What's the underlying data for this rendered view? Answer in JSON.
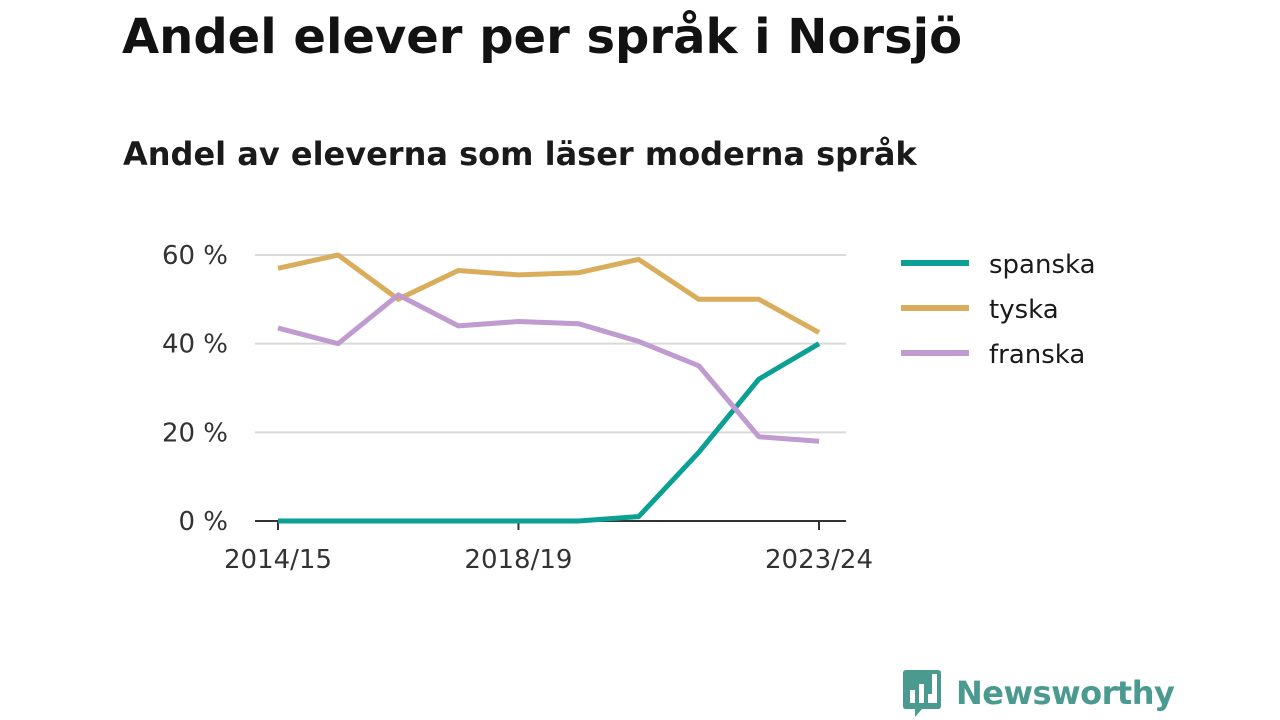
{
  "chart_data": {
    "type": "line",
    "title": "Andel elever per språk i Norsjö",
    "subtitle": "Andel av eleverna som läser moderna språk",
    "x": [
      "2014/15",
      "2015/16",
      "2016/17",
      "2017/18",
      "2018/19",
      "2019/20",
      "2020/21",
      "2021/22",
      "2022/23",
      "2023/24"
    ],
    "x_tick_labels": [
      "2014/15",
      "2018/19",
      "2023/24"
    ],
    "y_ticks": [
      0,
      20,
      40,
      60
    ],
    "y_tick_labels": [
      "0 %",
      "20 %",
      "40 %",
      "60 %"
    ],
    "ylim": [
      0,
      60
    ],
    "grid": true,
    "legend_position": "right",
    "series": [
      {
        "name": "spanska",
        "color": "#0aa093",
        "values": [
          0,
          0,
          0,
          0,
          0,
          0,
          1,
          15.5,
          32,
          40
        ]
      },
      {
        "name": "tyska",
        "color": "#d9ad5b",
        "values": [
          57,
          60,
          50,
          56.5,
          55.5,
          56,
          59,
          50,
          50,
          42.5
        ]
      },
      {
        "name": "franska",
        "color": "#c09bcf",
        "values": [
          43.5,
          40,
          51,
          44,
          45,
          44.5,
          40.5,
          35,
          19,
          18
        ]
      }
    ]
  },
  "brand": {
    "name": "Newsworthy",
    "icon": "bar-chart-speech-bubble-icon",
    "color": "#4a9a8f"
  }
}
